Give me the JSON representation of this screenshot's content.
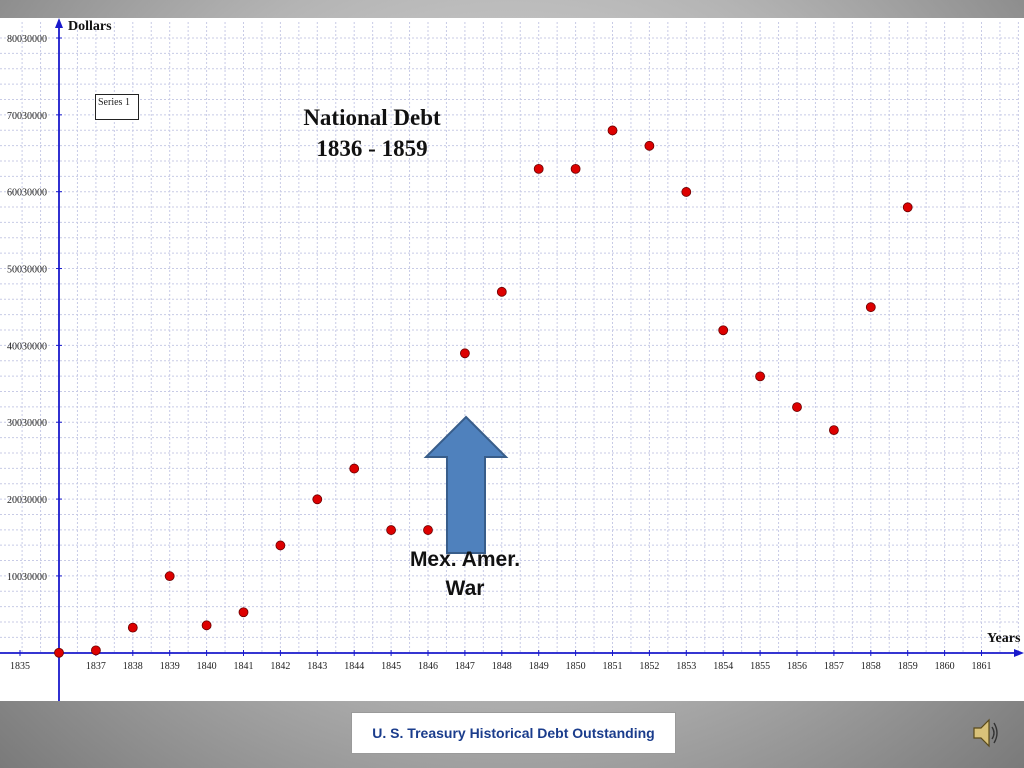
{
  "chart_data": {
    "type": "scatter",
    "title_lines": [
      "National Debt",
      "1836 - 1859"
    ],
    "xlabel": "Years",
    "ylabel": "Dollars",
    "legend": {
      "entries": [
        "Series 1"
      ],
      "placement": "top-left"
    },
    "xlim": [
      1835,
      1862
    ],
    "ylim": [
      0,
      80030000
    ],
    "grid": true,
    "x_ticks": [
      1835,
      1837,
      1838,
      1839,
      1840,
      1841,
      1842,
      1843,
      1844,
      1845,
      1846,
      1847,
      1848,
      1849,
      1850,
      1851,
      1852,
      1853,
      1854,
      1855,
      1856,
      1857,
      1858,
      1859,
      1860,
      1861
    ],
    "y_ticks": [
      10030000,
      20030000,
      30030000,
      40030000,
      50030000,
      60030000,
      70030000,
      80030000
    ],
    "series": [
      {
        "name": "Series 1",
        "color": "#dd0000",
        "x": [
          1836,
          1837,
          1838,
          1839,
          1840,
          1841,
          1842,
          1843,
          1844,
          1845,
          1846,
          1847,
          1848,
          1849,
          1850,
          1851,
          1852,
          1853,
          1854,
          1855,
          1856,
          1857,
          1858,
          1859
        ],
        "y": [
          30000,
          340000,
          3300000,
          10000000,
          3600000,
          5300000,
          14000000,
          20000000,
          24000000,
          16000000,
          16000000,
          39000000,
          47000000,
          63000000,
          63000000,
          68000000,
          66000000,
          60000000,
          42000000,
          36000000,
          32000000,
          29000000,
          45000000,
          58000000
        ]
      }
    ],
    "annotation": {
      "lines": [
        "Mex. Amer.",
        "War"
      ]
    }
  },
  "source": {
    "label": "U. S. Treasury Historical Debt Outstanding"
  },
  "icons": {
    "speaker": "speaker-icon",
    "arrow": "up-arrow-icon"
  },
  "colors": {
    "arrow_fill": "#4f81bd",
    "arrow_stroke": "#385d8a",
    "axis": "#1a1acc",
    "grid": "#c8cbe6"
  }
}
